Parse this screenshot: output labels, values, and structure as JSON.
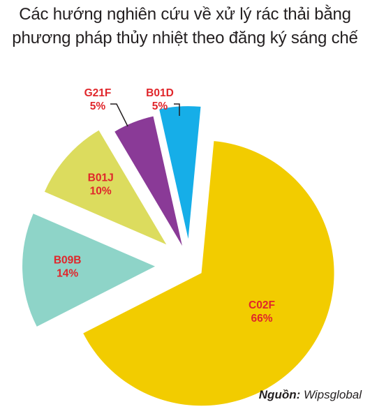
{
  "chart_data": {
    "type": "pie",
    "title_lines": [
      "Các hướng nghiên cứu về xử lý rác thải bằng",
      "phương pháp thủy nhiệt theo đăng ký sáng chế"
    ],
    "slices": [
      {
        "name": "C02F",
        "value": 66,
        "label": "66%",
        "color": "#f2cc00"
      },
      {
        "name": "B09B",
        "value": 14,
        "label": "14%",
        "color": "#8ed4c8"
      },
      {
        "name": "B01J",
        "value": 10,
        "label": "10%",
        "color": "#dcdc5e"
      },
      {
        "name": "G21F",
        "value": 5,
        "label": "5%",
        "color": "#8a3a97"
      },
      {
        "name": "B01D",
        "value": 5,
        "label": "5%",
        "color": "#16aee8"
      }
    ],
    "label_color": "#e0262b",
    "exploded": true
  },
  "source": {
    "prefix": "Nguồn:",
    "text": "Wipsglobal"
  }
}
